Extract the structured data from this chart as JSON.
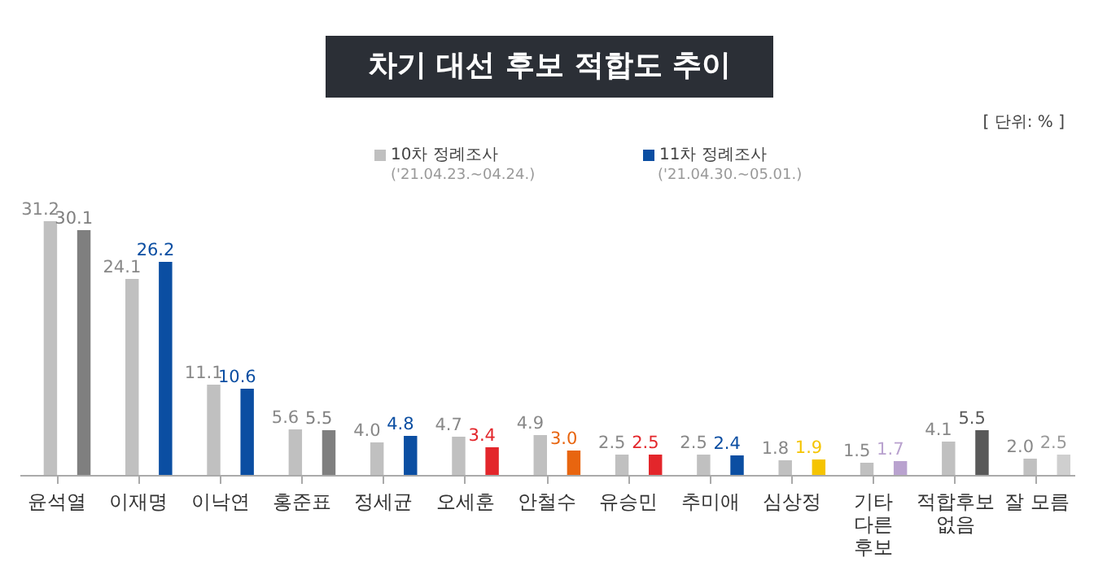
{
  "chart_data": {
    "type": "bar",
    "title": "차기 대선 후보 적합도 추이",
    "annotations": [
      "[ 단위: % ]",
      "('21.04.23.~04.24.)",
      "('21.04.30.~05.01.)"
    ],
    "categories": [
      "윤석열",
      "이재명",
      "이낙연",
      "홍준표",
      "정세균",
      "오세훈",
      "안철수",
      "유승민",
      "추미애",
      "심상정",
      "기타 다른 후보",
      "적합후보 없음",
      "잘 모름"
    ],
    "series": [
      {
        "name": "10차 정례조사",
        "color": "#c0c0c0",
        "values": [
          31.2,
          24.1,
          11.1,
          5.6,
          4.0,
          4.7,
          4.9,
          2.5,
          2.5,
          1.8,
          1.5,
          4.1,
          2.0
        ],
        "value_labels": [
          "31.2",
          "24.1",
          "11.1",
          "5.6",
          "4.0",
          "4.7",
          "4.9",
          "2.5",
          "2.5",
          "1.8",
          "1.5",
          "4.1",
          "2.0"
        ]
      },
      {
        "name": "11차 정례조사",
        "color": "#0b4ea2",
        "colors": [
          "#7f7f7f",
          "#0b4ea2",
          "#0b4ea2",
          "#7f7f7f",
          "#0b4ea2",
          "#e3262b",
          "#e8650f",
          "#e3262b",
          "#0b4ea2",
          "#f5c400",
          "#b9a2cf",
          "#595959",
          "#cfcfcf"
        ],
        "values": [
          30.1,
          26.2,
          10.6,
          5.5,
          4.8,
          3.4,
          3.0,
          2.5,
          2.4,
          1.9,
          1.7,
          5.5,
          2.5
        ],
        "value_labels": [
          "30.1",
          "26.2",
          "10.6",
          "5.5",
          "4.8",
          "3.4",
          "3.0",
          "2.5",
          "2.4",
          "1.9",
          "1.7",
          "5.5",
          "2.5"
        ]
      }
    ],
    "legend": "top"
  }
}
